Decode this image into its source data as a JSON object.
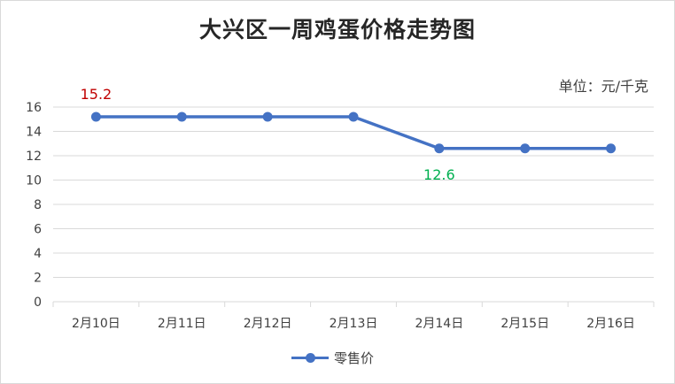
{
  "chart_data": {
    "type": "line",
    "title": "大兴区一周鸡蛋价格走势图",
    "unit_label": "单位：元/千克",
    "categories": [
      "2月10日",
      "2月11日",
      "2月12日",
      "2月13日",
      "2月14日",
      "2月15日",
      "2月16日"
    ],
    "series": [
      {
        "name": "零售价",
        "values": [
          15.2,
          15.2,
          15.2,
          15.2,
          12.6,
          12.6,
          12.6
        ],
        "color": "#4472c4"
      }
    ],
    "ylim": [
      0,
      16
    ],
    "yticks": [
      0,
      2,
      4,
      6,
      8,
      10,
      12,
      14,
      16
    ],
    "grid": true,
    "legend_position": "bottom",
    "annotations": [
      {
        "category": "2月10日",
        "text": "15.2",
        "color": "#c00000"
      },
      {
        "category": "2月14日",
        "text": "12.6",
        "color": "#00b050"
      }
    ]
  }
}
